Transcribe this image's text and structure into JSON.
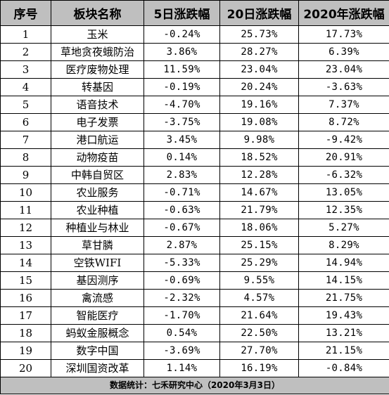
{
  "table": {
    "headers": [
      "序号",
      "板块名称",
      "5日涨跌幅",
      "20日涨跌幅",
      "2020年涨跌幅"
    ],
    "rows": [
      [
        "1",
        "玉米",
        "-0.24%",
        "25.73%",
        "17.73%"
      ],
      [
        "2",
        "草地贪夜蛾防治",
        "3.86%",
        "28.27%",
        "6.39%"
      ],
      [
        "3",
        "医疗废物处理",
        "11.59%",
        "23.04%",
        "23.04%"
      ],
      [
        "4",
        "转基因",
        "-0.19%",
        "20.24%",
        "-3.63%"
      ],
      [
        "5",
        "语音技术",
        "-4.70%",
        "19.16%",
        "7.37%"
      ],
      [
        "6",
        "电子发票",
        "-3.75%",
        "19.08%",
        "8.72%"
      ],
      [
        "7",
        "港口航运",
        "3.45%",
        "9.98%",
        "-9.42%"
      ],
      [
        "8",
        "动物疫苗",
        "0.14%",
        "18.52%",
        "20.91%"
      ],
      [
        "9",
        "中韩自贸区",
        "2.83%",
        "12.28%",
        "-6.32%"
      ],
      [
        "10",
        "农业服务",
        "-0.71%",
        "14.67%",
        "13.05%"
      ],
      [
        "11",
        "农业种植",
        "-0.63%",
        "21.79%",
        "12.35%"
      ],
      [
        "12",
        "种植业与林业",
        "-0.67%",
        "18.06%",
        "5.27%"
      ],
      [
        "13",
        "草甘膦",
        "2.87%",
        "25.15%",
        "8.29%"
      ],
      [
        "14",
        "空铁WIFI",
        "-5.33%",
        "25.29%",
        "14.94%"
      ],
      [
        "15",
        "基因测序",
        "-0.69%",
        "9.55%",
        "14.15%"
      ],
      [
        "16",
        "禽流感",
        "-2.32%",
        "4.57%",
        "21.75%"
      ],
      [
        "17",
        "智能医疗",
        "-1.70%",
        "21.64%",
        "19.43%"
      ],
      [
        "18",
        "蚂蚁金服概念",
        "0.54%",
        "22.50%",
        "13.21%"
      ],
      [
        "19",
        "数字中国",
        "-3.69%",
        "27.70%",
        "21.15%"
      ],
      [
        "20",
        "深圳国资改革",
        "1.14%",
        "16.19%",
        "-0.84%"
      ]
    ],
    "footer": "数据统计：七禾研究中心（2020年3月3日）"
  },
  "colors": {
    "header_bg": "#bfbfbf",
    "footer_bg": "#bfbfbf",
    "border": "#000000",
    "text": "#000000"
  }
}
